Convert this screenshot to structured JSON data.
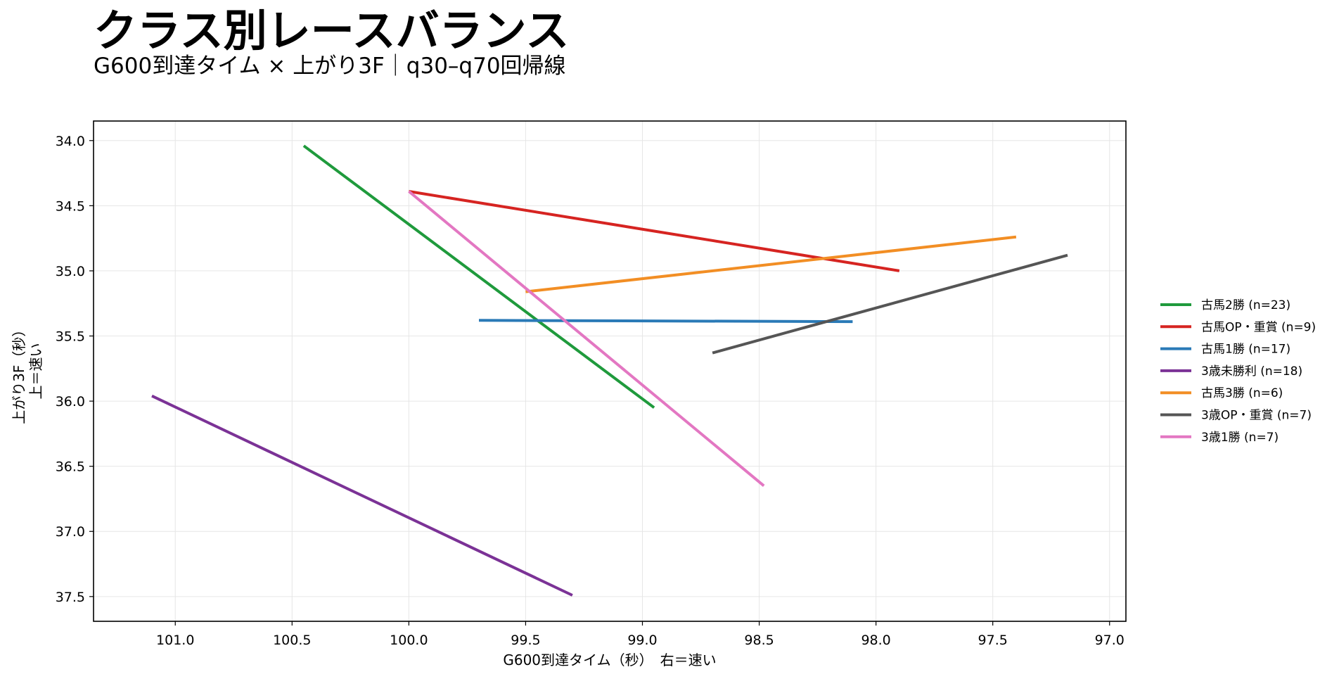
{
  "chart_data": {
    "type": "line",
    "title": "クラス別レースバランス",
    "subtitle": "G600到達タイム × 上がり3F｜q30–q70回帰線",
    "xlabel": "G600到達タイム（秒）　右＝速い",
    "ylabel_lines": [
      "上がり3F（秒）",
      "上＝速い"
    ],
    "x_inverted": true,
    "y_inverted": true,
    "xlim": [
      101.35,
      96.93
    ],
    "ylim": [
      37.69,
      33.85
    ],
    "x_ticks": [
      101.0,
      100.5,
      100.0,
      99.5,
      99.0,
      98.5,
      98.0,
      97.5,
      97.0
    ],
    "x_tick_labels": [
      "101.0",
      "100.5",
      "100.0",
      "99.5",
      "99.0",
      "98.5",
      "98.0",
      "97.5",
      "97.0"
    ],
    "y_ticks": [
      34.0,
      34.5,
      35.0,
      35.5,
      36.0,
      36.5,
      37.0,
      37.5
    ],
    "y_tick_labels": [
      "34.0",
      "34.5",
      "35.0",
      "35.5",
      "36.0",
      "36.5",
      "37.0",
      "37.5"
    ],
    "grid": true,
    "legend_position": "right",
    "series": [
      {
        "name": "古馬2勝 (n=23)",
        "color": "#1f9a3c",
        "x": [
          100.45,
          98.95
        ],
        "y": [
          34.04,
          36.05
        ]
      },
      {
        "name": "古馬OP・重賞 (n=9)",
        "color": "#d62421",
        "x": [
          100.0,
          97.9
        ],
        "y": [
          34.39,
          35.0
        ]
      },
      {
        "name": "古馬1勝 (n=17)",
        "color": "#2a7ab7",
        "x": [
          99.7,
          98.1
        ],
        "y": [
          35.38,
          35.39
        ]
      },
      {
        "name": "3歳未勝利 (n=18)",
        "color": "#7b3296",
        "x": [
          101.1,
          99.3
        ],
        "y": [
          35.96,
          37.49
        ]
      },
      {
        "name": "古馬3勝 (n=6)",
        "color": "#f28e24",
        "x": [
          99.5,
          97.4
        ],
        "y": [
          35.16,
          34.74
        ]
      },
      {
        "name": "3歳OP・重賞 (n=7)",
        "color": "#555555",
        "x": [
          98.7,
          97.18
        ],
        "y": [
          35.63,
          34.88
        ]
      },
      {
        "name": "3歳1勝 (n=7)",
        "color": "#e377c2",
        "x": [
          100.0,
          98.48
        ],
        "y": [
          34.39,
          36.65
        ]
      }
    ]
  }
}
